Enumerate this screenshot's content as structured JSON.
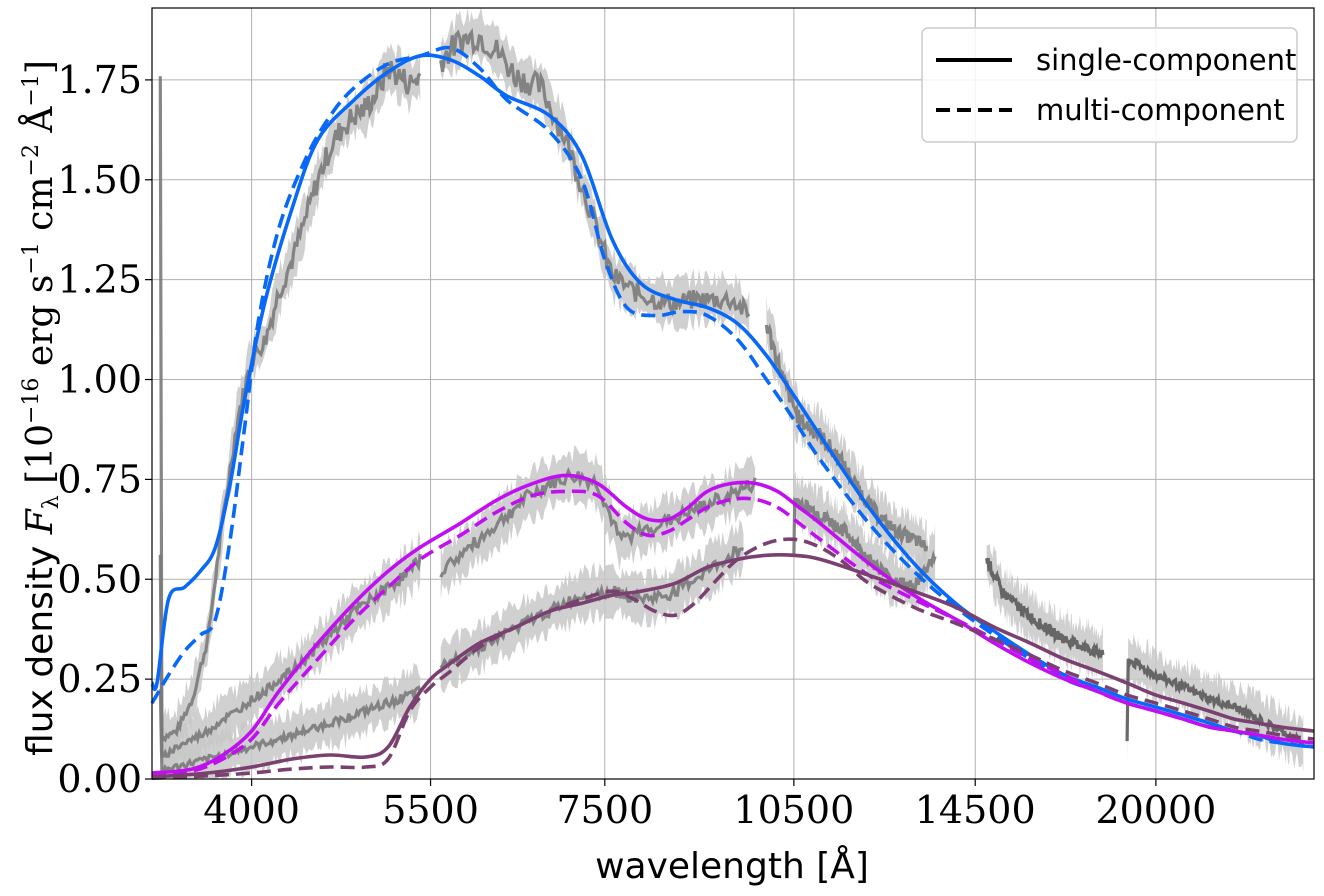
{
  "chart_data": {
    "type": "line",
    "x_scale": "log",
    "xlabel": "wavelength [Å]",
    "ylabel": "flux density F_λ [10^-16 erg s^-1 cm^-2 Å^-1]",
    "ylabel_prefix": "flux density ",
    "ylabel_math": "F",
    "ylabel_math_sub": "λ",
    "ylabel_unit_open": " [10",
    "ylabel_exp1": "−16",
    "ylabel_unit_mid1": " erg s",
    "ylabel_exp2": "−1",
    "ylabel_unit_mid2": " cm",
    "ylabel_exp3": "−2",
    "ylabel_unit_mid3": " Å",
    "ylabel_exp4": "−1",
    "ylabel_unit_close": "]",
    "xlim": [
      3350,
      26500
    ],
    "ylim": [
      0,
      1.93
    ],
    "x_ticks": [
      4000,
      5500,
      7500,
      10500,
      14500,
      20000
    ],
    "x_tick_labels": [
      "4000",
      "5500",
      "7500",
      "10500",
      "14500",
      "20000"
    ],
    "y_ticks": [
      0.0,
      0.25,
      0.5,
      0.75,
      1.0,
      1.25,
      1.5,
      1.75
    ],
    "y_tick_labels": [
      "0.00",
      "0.25",
      "0.50",
      "0.75",
      "1.00",
      "1.25",
      "1.50",
      "1.75"
    ],
    "grid": true,
    "legend": {
      "placement": "top-right",
      "entries": [
        {
          "label": "single-component",
          "style": "solid",
          "color": "#000000"
        },
        {
          "label": "multi-component",
          "style": "dashed",
          "color": "#000000"
        }
      ]
    },
    "colors": {
      "epoch1": "#0868f8",
      "epoch2": "#c010f0",
      "epoch3": "#7a4070",
      "observed": "#7a7a7a",
      "observed_band": "#c8c8c8"
    },
    "series": [
      {
        "group": "epoch1",
        "style": "solid",
        "color": "#0868f8",
        "x": [
          3350,
          3380,
          3450,
          3550,
          3650,
          3750,
          3850,
          3950,
          4100,
          4300,
          4500,
          4800,
          5100,
          5400,
          5700,
          6000,
          6300,
          6800,
          7200,
          7600,
          8000,
          8500,
          9000,
          9500,
          10000,
          10500,
          11000,
          12000,
          13000,
          14000,
          15000,
          16000,
          17000,
          18000,
          19000,
          20000,
          21000,
          22000,
          23000,
          24000,
          25000,
          26500
        ],
        "y": [
          0.24,
          0.24,
          0.45,
          0.48,
          0.52,
          0.58,
          0.74,
          0.95,
          1.2,
          1.43,
          1.6,
          1.7,
          1.77,
          1.81,
          1.8,
          1.76,
          1.71,
          1.66,
          1.56,
          1.35,
          1.24,
          1.2,
          1.18,
          1.14,
          1.06,
          0.96,
          0.86,
          0.68,
          0.54,
          0.44,
          0.37,
          0.31,
          0.26,
          0.23,
          0.2,
          0.18,
          0.16,
          0.14,
          0.12,
          0.11,
          0.09,
          0.08
        ]
      },
      {
        "group": "epoch1",
        "style": "dashed",
        "color": "#0868f8",
        "x": [
          3350,
          3450,
          3550,
          3650,
          3750,
          3850,
          3950,
          4050,
          4200,
          4400,
          4600,
          4800,
          5100,
          5400,
          5700,
          6000,
          6300,
          6800,
          7200,
          7500,
          7800,
          8200,
          8600,
          9000,
          9500,
          10000,
          10500,
          11000,
          12000,
          13000,
          14000,
          15000,
          16000,
          17000,
          18000,
          19000,
          20000,
          21000,
          22000,
          23000,
          24000,
          25000,
          26500
        ],
        "y": [
          0.19,
          0.26,
          0.32,
          0.36,
          0.4,
          0.6,
          0.88,
          1.15,
          1.38,
          1.55,
          1.66,
          1.73,
          1.79,
          1.81,
          1.83,
          1.78,
          1.7,
          1.62,
          1.5,
          1.3,
          1.18,
          1.16,
          1.17,
          1.16,
          1.1,
          1.0,
          0.9,
          0.8,
          0.64,
          0.52,
          0.43,
          0.36,
          0.3,
          0.25,
          0.22,
          0.19,
          0.17,
          0.15,
          0.13,
          0.12,
          0.1,
          0.09,
          0.08
        ]
      },
      {
        "group": "epoch2",
        "style": "solid",
        "color": "#c010f0",
        "x": [
          3350,
          3600,
          3800,
          4000,
          4200,
          4500,
          4800,
          5100,
          5400,
          5800,
          6200,
          6600,
          7000,
          7400,
          7800,
          8100,
          8400,
          8700,
          9000,
          9400,
          9800,
          10200,
          10600,
          11000,
          12000,
          13000,
          14000,
          15000,
          16000,
          17000,
          18000,
          19000,
          20000,
          21000,
          22000,
          23000,
          24000,
          25000,
          26500
        ],
        "y": [
          0.015,
          0.025,
          0.06,
          0.12,
          0.22,
          0.34,
          0.44,
          0.52,
          0.58,
          0.64,
          0.7,
          0.74,
          0.76,
          0.74,
          0.68,
          0.65,
          0.65,
          0.68,
          0.72,
          0.74,
          0.74,
          0.72,
          0.68,
          0.64,
          0.54,
          0.46,
          0.4,
          0.34,
          0.29,
          0.25,
          0.22,
          0.19,
          0.17,
          0.15,
          0.13,
          0.12,
          0.11,
          0.1,
          0.09
        ]
      },
      {
        "group": "epoch2",
        "style": "dashed",
        "color": "#c010f0",
        "x": [
          3350,
          3600,
          3800,
          4000,
          4200,
          4500,
          4800,
          5100,
          5400,
          5800,
          6200,
          6600,
          7000,
          7400,
          7800,
          8100,
          8400,
          8700,
          9000,
          9400,
          9800,
          10200,
          10600,
          11000,
          12000,
          13000,
          14000,
          15000,
          16000,
          17000,
          18000,
          19000,
          20000,
          21000,
          22000,
          23000,
          24000,
          25000,
          26500
        ],
        "y": [
          0.01,
          0.02,
          0.05,
          0.1,
          0.19,
          0.3,
          0.4,
          0.48,
          0.55,
          0.61,
          0.67,
          0.71,
          0.72,
          0.71,
          0.64,
          0.61,
          0.62,
          0.65,
          0.68,
          0.7,
          0.7,
          0.68,
          0.64,
          0.6,
          0.51,
          0.45,
          0.4,
          0.35,
          0.3,
          0.26,
          0.22,
          0.19,
          0.17,
          0.15,
          0.13,
          0.12,
          0.11,
          0.1,
          0.09
        ]
      },
      {
        "group": "epoch3",
        "style": "solid",
        "color": "#7a4070",
        "x": [
          3350,
          3700,
          4000,
          4300,
          4600,
          4900,
          5100,
          5300,
          5500,
          5700,
          6000,
          6400,
          6800,
          7200,
          7600,
          8000,
          8500,
          9000,
          9500,
          10000,
          10500,
          11000,
          12000,
          13000,
          14000,
          15000,
          16000,
          17000,
          18000,
          19000,
          20000,
          21000,
          22000,
          23000,
          24000,
          25000,
          26500
        ],
        "y": [
          0.005,
          0.015,
          0.03,
          0.05,
          0.06,
          0.055,
          0.08,
          0.18,
          0.25,
          0.29,
          0.34,
          0.38,
          0.42,
          0.44,
          0.46,
          0.47,
          0.49,
          0.53,
          0.55,
          0.56,
          0.56,
          0.55,
          0.51,
          0.47,
          0.43,
          0.38,
          0.34,
          0.3,
          0.27,
          0.24,
          0.21,
          0.19,
          0.17,
          0.15,
          0.14,
          0.13,
          0.12
        ]
      },
      {
        "group": "epoch3",
        "style": "dashed",
        "color": "#7a4070",
        "x": [
          3350,
          3700,
          4000,
          4300,
          4600,
          4900,
          5100,
          5300,
          5500,
          5700,
          6000,
          6400,
          6800,
          7200,
          7600,
          7900,
          8200,
          8500,
          8800,
          9100,
          9500,
          10000,
          10500,
          11000,
          11500,
          12000,
          13000,
          14000,
          15000,
          16000,
          17000,
          18000,
          19000,
          20000,
          21000,
          22000,
          23000,
          24000,
          25000,
          26500
        ],
        "y": [
          0.002,
          0.008,
          0.015,
          0.025,
          0.03,
          0.03,
          0.05,
          0.17,
          0.23,
          0.27,
          0.33,
          0.38,
          0.42,
          0.45,
          0.47,
          0.45,
          0.42,
          0.41,
          0.44,
          0.49,
          0.55,
          0.59,
          0.6,
          0.58,
          0.54,
          0.49,
          0.43,
          0.39,
          0.35,
          0.31,
          0.27,
          0.24,
          0.21,
          0.19,
          0.17,
          0.15,
          0.13,
          0.12,
          0.11,
          0.1
        ]
      },
      {
        "group": "observed",
        "style": "noisy",
        "color": "#7a7a7a",
        "x": [
          3400,
          3500,
          3600,
          3700,
          3800,
          3900,
          4000,
          4100,
          4200,
          4300,
          4400,
          4500,
          4600,
          4700,
          4800,
          4900,
          5000,
          5100,
          5200,
          5300,
          5400
        ],
        "y": [
          0.1,
          0.12,
          0.2,
          0.35,
          0.65,
          0.9,
          1.05,
          1.1,
          1.22,
          1.3,
          1.4,
          1.5,
          1.58,
          1.63,
          1.66,
          1.68,
          1.72,
          1.78,
          1.76,
          1.74,
          1.76
        ]
      },
      {
        "group": "observed",
        "style": "noisy",
        "color": "#7a7a7a",
        "x": [
          5600,
          5800,
          6000,
          6200,
          6400,
          6700,
          7000,
          7300,
          7600,
          7900,
          8200,
          8500,
          8800,
          9100,
          9400,
          9700
        ],
        "y": [
          1.8,
          1.85,
          1.86,
          1.82,
          1.76,
          1.73,
          1.6,
          1.43,
          1.26,
          1.22,
          1.2,
          1.19,
          1.2,
          1.2,
          1.2,
          1.16
        ]
      },
      {
        "group": "observed",
        "style": "noisy",
        "color": "#7a7a7a",
        "x": [
          10000,
          10300,
          10600,
          11000,
          11400,
          11800,
          12200,
          12600,
          13000,
          13300
        ],
        "y": [
          1.14,
          1.0,
          0.9,
          0.86,
          0.8,
          0.72,
          0.66,
          0.62,
          0.6,
          0.58
        ]
      },
      {
        "group": "observed",
        "style": "noisy",
        "color": "#5a5a5a",
        "x": [
          14800,
          15200,
          15800,
          16400,
          17000,
          17600,
          18200
        ],
        "y": [
          0.55,
          0.47,
          0.42,
          0.38,
          0.35,
          0.33,
          0.31
        ]
      },
      {
        "group": "observed",
        "style": "noisy",
        "color": "#5a5a5a",
        "x": [
          19000,
          20000,
          21000,
          22000,
          23000,
          24000,
          25000,
          26000
        ],
        "y": [
          0.3,
          0.26,
          0.23,
          0.2,
          0.18,
          0.15,
          0.12,
          0.09
        ]
      },
      {
        "group": "observed",
        "style": "noisy",
        "color": "#7a7a7a",
        "x": [
          3400,
          3500,
          3600,
          3700,
          3800,
          3900,
          4000,
          4100,
          4200,
          4300,
          4400,
          4500,
          4600,
          4700,
          4800,
          4900,
          5000,
          5100,
          5200,
          5300,
          5400
        ],
        "y": [
          0.05,
          0.08,
          0.1,
          0.12,
          0.15,
          0.17,
          0.2,
          0.22,
          0.25,
          0.27,
          0.3,
          0.33,
          0.36,
          0.39,
          0.42,
          0.44,
          0.46,
          0.48,
          0.5,
          0.52,
          0.55
        ]
      },
      {
        "group": "observed",
        "style": "noisy",
        "color": "#7a7a7a",
        "x": [
          5600,
          5900,
          6200,
          6500,
          6800,
          7100,
          7400,
          7700,
          8000,
          8300,
          8600,
          8900,
          9200,
          9500,
          9800
        ],
        "y": [
          0.52,
          0.58,
          0.64,
          0.7,
          0.74,
          0.76,
          0.74,
          0.6,
          0.62,
          0.64,
          0.66,
          0.68,
          0.7,
          0.72,
          0.74
        ]
      },
      {
        "group": "observed",
        "style": "noisy",
        "color": "#7a7a7a",
        "x": [
          10500,
          11000,
          11500,
          12000,
          12500,
          13000,
          13500
        ],
        "y": [
          0.7,
          0.66,
          0.62,
          0.55,
          0.5,
          0.48,
          0.56
        ]
      },
      {
        "group": "observed",
        "style": "noisy",
        "color": "#7a7a7a",
        "x": [
          3400,
          3600,
          3800,
          4000,
          4200,
          4400,
          4600,
          4800,
          5000,
          5200,
          5400
        ],
        "y": [
          0.02,
          0.04,
          0.06,
          0.08,
          0.1,
          0.12,
          0.14,
          0.16,
          0.18,
          0.2,
          0.22
        ]
      },
      {
        "group": "observed",
        "style": "noisy",
        "color": "#7a7a7a",
        "x": [
          5600,
          6000,
          6400,
          6800,
          7200,
          7600,
          8000,
          8400,
          8800,
          9200,
          9600
        ],
        "y": [
          0.28,
          0.33,
          0.38,
          0.42,
          0.46,
          0.47,
          0.45,
          0.46,
          0.5,
          0.54,
          0.58
        ]
      }
    ]
  }
}
